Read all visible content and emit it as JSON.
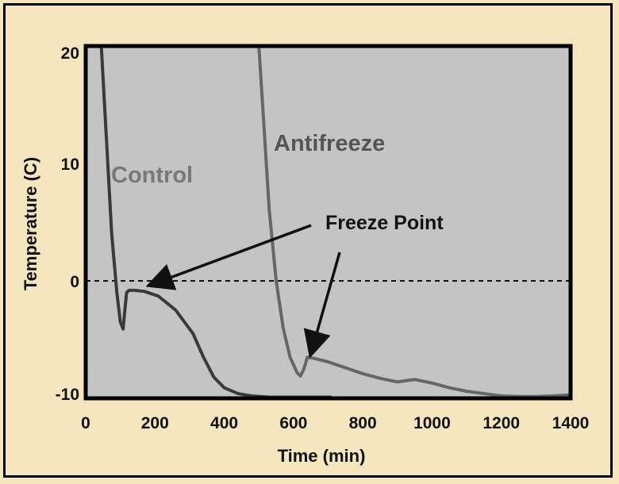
{
  "chart_data": {
    "type": "line",
    "title": "",
    "xlabel": "Time (min)",
    "ylabel": "Temperature (C)",
    "xlim": [
      0,
      1400
    ],
    "ylim": [
      -10,
      20
    ],
    "xticks": [
      "0",
      "200",
      "400",
      "600",
      "800",
      "1000",
      "1200",
      "1400"
    ],
    "yticks": [
      "20",
      "10",
      "0",
      "-10"
    ],
    "grid": false,
    "legend": "none",
    "reference_line": {
      "y": 0,
      "style": "dashed"
    },
    "series": [
      {
        "name": "Control",
        "color": "#3a3a3a",
        "x": [
          45,
          60,
          75,
          90,
          100,
          108,
          113,
          118,
          125,
          140,
          170,
          210,
          260,
          310,
          340,
          370,
          400,
          440,
          480,
          530,
          580,
          640,
          710
        ],
        "y": [
          20,
          12,
          4,
          -1,
          -3.5,
          -4.1,
          -2.5,
          -1,
          -0.8,
          -0.8,
          -0.9,
          -1.3,
          -2.5,
          -4.5,
          -6.5,
          -8.2,
          -9.1,
          -9.6,
          -9.8,
          -9.9,
          -9.9,
          -9.9,
          -9.9
        ],
        "style": "solid"
      },
      {
        "name": "Antifreeze",
        "color": "#666666",
        "x": [
          500,
          515,
          530,
          550,
          570,
          590,
          610,
          620,
          630,
          640,
          660,
          700,
          750,
          800,
          850,
          900,
          950,
          1000,
          1050,
          1100,
          1150,
          1200,
          1250,
          1300,
          1350,
          1400
        ],
        "y": [
          20,
          13,
          6,
          0,
          -4,
          -6.5,
          -7.8,
          -8.1,
          -7.5,
          -6.5,
          -6.6,
          -6.9,
          -7.4,
          -7.9,
          -8.3,
          -8.6,
          -8.4,
          -8.7,
          -9.1,
          -9.4,
          -9.6,
          -9.8,
          -9.85,
          -9.85,
          -9.8,
          -9.7
        ],
        "style": "solid"
      }
    ],
    "annotations": [
      {
        "text": "Control",
        "color": "#787878"
      },
      {
        "text": "Antifreeze",
        "color": "#555555"
      },
      {
        "text": "Freeze Point",
        "color": "#111111"
      }
    ]
  }
}
